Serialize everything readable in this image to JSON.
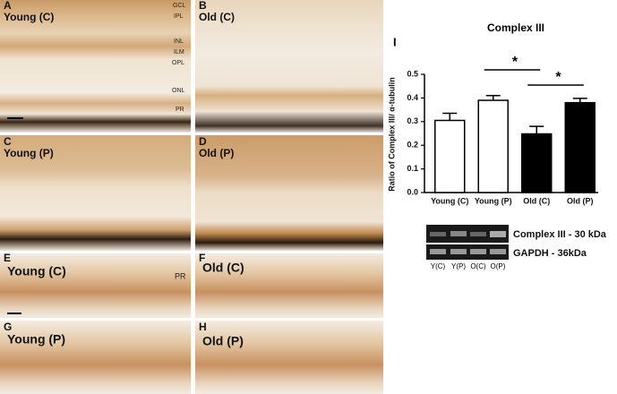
{
  "panels": [
    {
      "letter": "A",
      "group": "Young (C)",
      "layers": [
        "GCL",
        "IPL",
        "INL",
        "ILM",
        "OPL",
        "ONL",
        "PR"
      ]
    },
    {
      "letter": "B",
      "group": "Old (C)"
    },
    {
      "letter": "C",
      "group": "Young (P)"
    },
    {
      "letter": "D",
      "group": "Old (P)"
    },
    {
      "letter": "E",
      "group": "Young (C)",
      "layers": [
        "PR"
      ]
    },
    {
      "letter": "F",
      "group": "Old (C)"
    },
    {
      "letter": "G",
      "group": "Young (P)"
    },
    {
      "letter": "H",
      "group": "Old (P)"
    }
  ],
  "chart_data": {
    "type": "bar",
    "panel": "I",
    "title": "Complex III",
    "ylabel": "Ratio of Complex III/ α-tubulin",
    "categories": [
      "Young (C)",
      "Young (P)",
      "Old (C)",
      "Old (P)"
    ],
    "values": [
      0.305,
      0.39,
      0.248,
      0.38
    ],
    "errors": [
      0.03,
      0.02,
      0.032,
      0.018
    ],
    "colors": [
      "#ffffff",
      "#ffffff",
      "#000000",
      "#000000"
    ],
    "ylim": [
      0,
      0.5
    ],
    "yticks": [
      {
        "value": 0,
        "label": "0.0"
      },
      0.1,
      0.2,
      0.3,
      0.4,
      0.5
    ],
    "annotations": [
      "*",
      "*"
    ]
  },
  "blot": {
    "rows": [
      "Complex III - 30 kDa",
      "GAPDH - 36kDa"
    ],
    "lanes": [
      "Y(C)",
      "Y(P)",
      "O(C)",
      "O(P)"
    ]
  }
}
